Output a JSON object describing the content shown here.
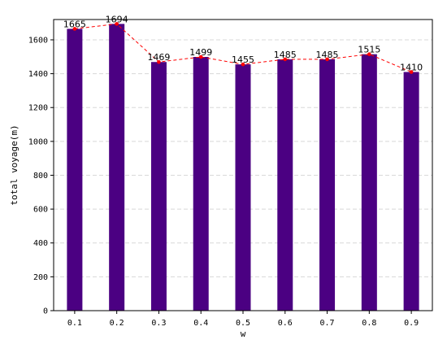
{
  "chart_data": {
    "type": "bar",
    "categories": [
      "0.1",
      "0.2",
      "0.3",
      "0.4",
      "0.5",
      "0.6",
      "0.7",
      "0.8",
      "0.9"
    ],
    "values": [
      1665,
      1694,
      1469,
      1499,
      1455,
      1485,
      1485,
      1515,
      1410
    ],
    "data_labels": [
      "1665",
      "1694",
      "1469",
      "1499",
      "1455",
      "1485",
      "1485",
      "1515",
      "1410"
    ],
    "overlay_line": {
      "style": "dashed",
      "marker": "dot"
    },
    "xlabel": "w",
    "ylabel": "total voyage(m)",
    "ylim": [
      0,
      1720
    ],
    "yticks": [
      0,
      200,
      400,
      600,
      800,
      1000,
      1200,
      1400,
      1600
    ],
    "ytick_labels": [
      "0",
      "200",
      "400",
      "600",
      "800",
      "1000",
      "1200",
      "1400",
      "1600"
    ],
    "grid": "horizontal dashed",
    "colors": {
      "bar": "#4b0082",
      "line": "#ff0000",
      "grid": "#d8d8d8"
    }
  }
}
